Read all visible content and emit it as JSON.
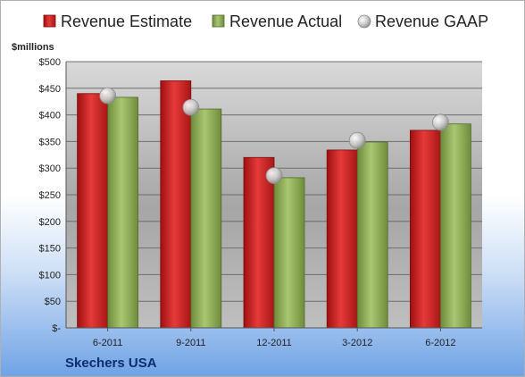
{
  "chart_data": {
    "type": "bar",
    "ylabel": "$millions",
    "ylim": [
      0,
      500
    ],
    "yticks": [
      0,
      50,
      100,
      150,
      200,
      250,
      300,
      350,
      400,
      450,
      500
    ],
    "ytick_labels": [
      "$-",
      "$50",
      "$100",
      "$150",
      "$200",
      "$250",
      "$300",
      "$350",
      "$400",
      "$450",
      "$500"
    ],
    "categories": [
      "6-2011",
      "9-2011",
      "12-2011",
      "3-2012",
      "6-2012"
    ],
    "series": [
      {
        "name": "Revenue Estimate",
        "type": "bar",
        "color": "#d62b2b",
        "values": [
          440,
          464,
          320,
          334,
          371
        ]
      },
      {
        "name": "Revenue Actual",
        "type": "bar",
        "color": "#93b55a",
        "values": [
          433,
          411,
          282,
          349,
          383
        ]
      },
      {
        "name": "Revenue GAAP",
        "type": "scatter",
        "color": "#b8b8b8",
        "values": [
          436,
          414,
          286,
          352,
          386
        ]
      }
    ],
    "grid": true,
    "legend_position": "top"
  },
  "footer": {
    "company": "Skechers USA"
  }
}
